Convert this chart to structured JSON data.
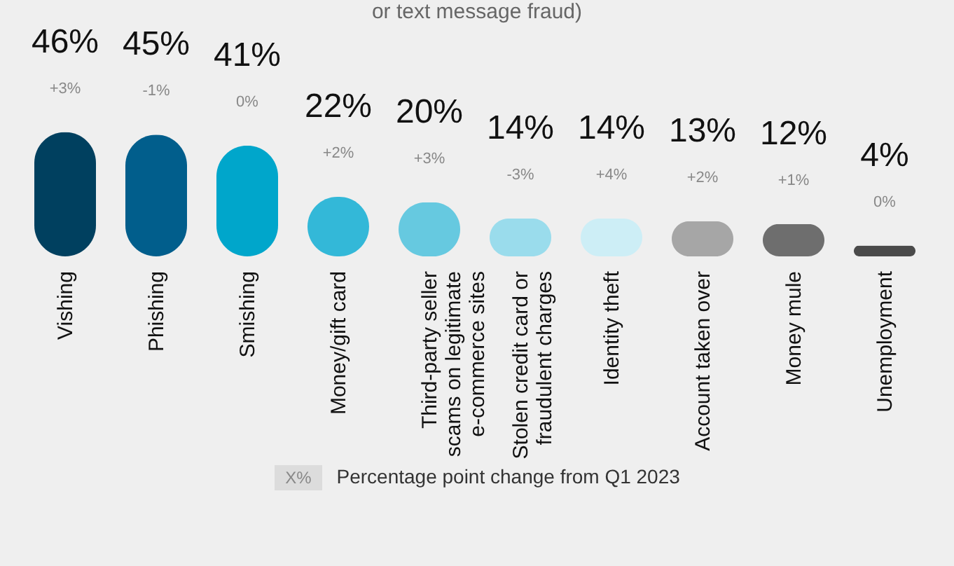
{
  "chart_data": {
    "type": "bar",
    "title": "or text message fraud)",
    "categories": [
      "Vishing",
      "Phishing",
      "Smishing",
      "Money/gift card",
      "Third-party seller scams on legitimate e-commerce sites",
      "Stolen credit card or fraudulent charges",
      "Identity theft",
      "Account taken over",
      "Money mule",
      "Unemployment"
    ],
    "values": [
      46,
      45,
      41,
      22,
      20,
      14,
      14,
      13,
      12,
      4
    ],
    "value_labels": [
      "46%",
      "45%",
      "41%",
      "22%",
      "20%",
      "14%",
      "14%",
      "13%",
      "12%",
      "4%"
    ],
    "colors": [
      "#00405f",
      "#015e8c",
      "#00a6cb",
      "#33b8d8",
      "#66c9e0",
      "#9adcec",
      "#cdeef6",
      "#a6a6a6",
      "#6e6e6e",
      "#4a4a4a"
    ],
    "annotations": [
      {
        "text": "+3%",
        "x": "Vishing",
        "y": 46
      },
      {
        "text": "-1%",
        "x": "Phishing",
        "y": 45
      },
      {
        "text": "0%",
        "x": "Smishing",
        "y": 41
      },
      {
        "text": "+2%",
        "x": "Money/gift card",
        "y": 22
      },
      {
        "text": "+3%",
        "x": "Third-party seller scams on legitimate e-commerce sites",
        "y": 20
      },
      {
        "text": "-3%",
        "x": "Stolen credit card or fraudulent charges",
        "y": 14
      },
      {
        "text": "+4%",
        "x": "Identity theft",
        "y": 14
      },
      {
        "text": "+2%",
        "x": "Account taken over",
        "y": 13
      },
      {
        "text": "+1%",
        "x": "Money mule",
        "y": 12
      },
      {
        "text": "0%",
        "x": "Unemployment",
        "y": 4
      },
      "X%",
      "Percentage point change from Q1 2023"
    ],
    "grid": false
  }
}
